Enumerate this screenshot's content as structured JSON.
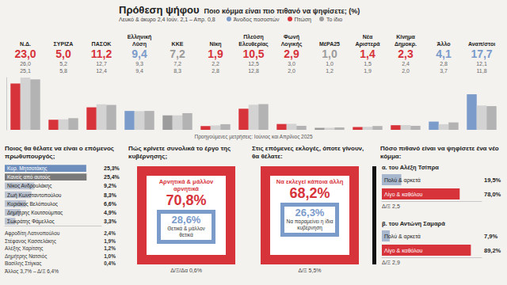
{
  "chart_data": [
    {
      "type": "bar",
      "title": "Πρόθεση ψήφου",
      "subtitle": "Ποιο κόμμα είναι πιο πιθανό να ψηφίσετε; (%)",
      "note": "Λευκό & άκυρο 2,4 Ιούν. 2,1 – Απρ. 0,8",
      "footnote": "Προηγούμενες μετρήσεις: Ιούνιος και Απρίλιος 2025",
      "trend_legend": [
        {
          "label": "Άνοδος ποσοστών",
          "color": "#7b9bcb"
        },
        {
          "label": "Πτώση",
          "color": "#d7333b"
        },
        {
          "label": "Το ίδιο",
          "color": "#9c9c9c"
        }
      ],
      "categories": [
        "Ν.Δ.",
        "ΣΥΡΙΖΑ",
        "ΠΑΣΟΚ",
        "Ελληνική Λύση",
        "ΚΚΕ",
        "Νίκη",
        "Πλεύση Ελευθερίας",
        "Φωνή Λογικής",
        "ΜέΡΑ25",
        "Νέα Αριστερά",
        "Κίνημα Δημοκρ.",
        "Άλλο",
        "Αναπ/στοι"
      ],
      "series": [
        {
          "values": [
            23.0,
            5.0,
            11.2,
            9.4,
            7.2,
            1.9,
            10.5,
            2.9,
            1.0,
            1.4,
            2.3,
            4.1,
            17.7
          ],
          "value_labels": [
            "23,0",
            "5,0",
            "11,2",
            "9,4",
            "7,2",
            "1,9",
            "10,5",
            "2,9",
            "1,0",
            "1,4",
            "2,3",
            "4,1",
            "17,7"
          ],
          "colors": [
            "#d7333b",
            "#d7333b",
            "#d7333b",
            "#7b9bcb",
            "#9c9c9c",
            "#d7333b",
            "#d7333b",
            "#d7333b",
            "#9c9c9c",
            "#d7333b",
            "#d7333b",
            "#7b9bcb",
            "#7b9bcb"
          ]
        },
        {
          "values": [
            26.0,
            5.2,
            12.7,
            9.3,
            7.2,
            2.2,
            12.5,
            3.0,
            1.0,
            1.5,
            2.4,
            2.8,
            12.1
          ],
          "value_labels": [
            "26,0",
            "5,2",
            "12,7",
            "9,3",
            "7,2",
            "2,2",
            "12,5",
            "3,0",
            "1,0",
            "1,5",
            "2,4",
            "2,8",
            "12,1"
          ],
          "color": "#d3d3d3"
        },
        {
          "values": [
            25.1,
            5.8,
            12.4,
            9.4,
            8.3,
            2.8,
            12.8,
            2.0,
            1.2,
            1.9,
            2.0,
            3.7,
            11.8
          ],
          "value_labels": [
            "25,1",
            "5,8",
            "12,4",
            "9,4",
            "8,3",
            "2,8",
            "12,8",
            "2,0",
            "1,2",
            "1,9",
            "2,0",
            "3,7",
            "11,8"
          ],
          "color": "#b3b3b3"
        }
      ],
      "ylim": [
        0,
        26
      ],
      "grid": false,
      "data_labels": true,
      "tick_labels": "x"
    },
    {
      "type": "bar",
      "orientation": "horizontal",
      "title": "Ποιος θα θέλατε να είναι ο επόμενος πρωθυπουργός;",
      "categories": [
        "Κυρ. Μητσοτάκης",
        "Κανείς από αυτούς",
        "Νίκος Ανδρουλάκης",
        "Ζωή Κωνσταντοπούλου",
        "Κυριάκος Βελόπουλος",
        "Δημήτρης Κουτσούμπας",
        "Σωκράτης Φάμελλος"
      ],
      "values": [
        25.3,
        25.4,
        9.2,
        8.3,
        6.6,
        4.9,
        3.3
      ],
      "value_labels": [
        "25,3%",
        "25,4%",
        "9,2%",
        "8,3%",
        "6,6%",
        "4,9%",
        "3,3%"
      ],
      "colors": [
        "#6d8ebd",
        "#7a7a7a",
        "#bcc4d2",
        "#bcc4d2",
        "#bcc4d2",
        "#bcc4d2",
        "#bcc4d2"
      ],
      "xlim": [
        0,
        30
      ],
      "grid": false,
      "data_labels": true,
      "tick_labels": "y",
      "others": [
        {
          "name": "Αφροδίτη Λατινοπούλου",
          "value": "2,4%"
        },
        {
          "name": "Στέφανος Κασσελάκης",
          "value": "1,9%"
        },
        {
          "name": "Αλέξης Χαρίτσης",
          "value": "1,2%"
        },
        {
          "name": "Δημήτρης Νατσιός",
          "value": "1,0%"
        },
        {
          "name": "Βασίλης Στίγκας",
          "value": "0,4%"
        }
      ],
      "others_footer": "Άλλος 3,7% – Δ/Ξ 6,4%"
    },
    {
      "type": "bar",
      "orientation": "horizontal",
      "title": "α. του Αλέξη Τσίπρα",
      "categories": [
        "Πολύ & αρκετά",
        "Λίγο & καθόλου"
      ],
      "values": [
        19.5,
        78.0
      ],
      "value_labels": [
        "19,5%",
        "78,0%"
      ],
      "colors": [
        "#a7b7cd",
        "#d7333b"
      ],
      "xlim": [
        0,
        100
      ],
      "grid": false,
      "data_labels": true,
      "tick_labels": "y",
      "note": "Δ/Ξ 2,5"
    },
    {
      "type": "bar",
      "orientation": "horizontal",
      "title": "β. του Αντώνη Σαμαρά",
      "categories": [
        "Πολύ & αρκετά",
        "Λίγο & καθόλου"
      ],
      "values": [
        7.9,
        89.2
      ],
      "value_labels": [
        "7,9%",
        "89,2%"
      ],
      "colors": [
        "#a7b7cd",
        "#d7333b"
      ],
      "xlim": [
        0,
        100
      ],
      "grid": false,
      "data_labels": true,
      "tick_labels": "y",
      "note": "Δ/Ξ 2,9"
    }
  ],
  "new_party_heading": "Πόσο πιθανό είναι να ψηφίσετε ένα νέο κόμμα:",
  "panels": [
    {
      "title": "Πώς κρίνετε συνολικά το έργο της κυβέρνησης;",
      "main": {
        "label": "Αρνητικά & μάλλον αρνητικά",
        "value": "70,8%",
        "color": "#d7333b"
      },
      "second": {
        "label": "Θετικά & μάλλον θετικά",
        "value": "28,6%",
        "color": "#7b9bcb"
      },
      "other": "Δ/Ξ/Δα 0,6%"
    },
    {
      "title": "Στις επόμενες εκλογές, όποτε γίνουν, θα θέλατε:",
      "main": {
        "label": "Να εκλεγεί κάποια άλλη",
        "value": "68,2%",
        "color": "#d7333b"
      },
      "second": {
        "label": "Να παραμείνει η ίδια κυβέρνηση",
        "value": "26,3%",
        "color": "#7b9bcb"
      },
      "other": "Δ/Ξ 5,5%"
    }
  ]
}
